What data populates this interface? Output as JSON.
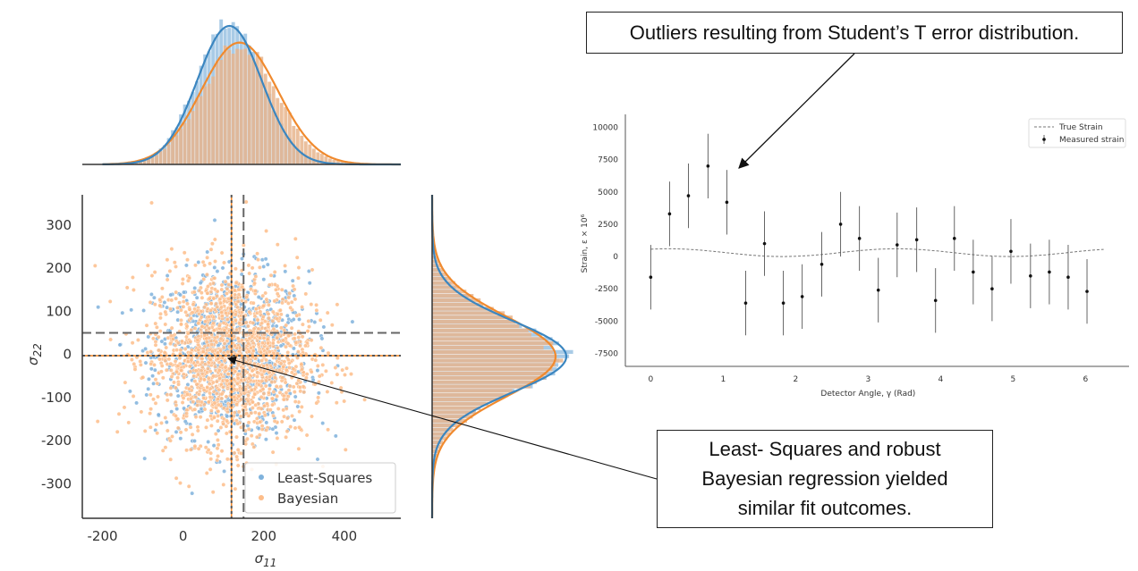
{
  "annotations": {
    "outliers": "Outliers resulting from Student’s T error distribution.",
    "comparison": "Least- Squares and robust\nBayesian regression yielded\nsimilar fit outcomes."
  },
  "colors": {
    "blue": "#3b86c0",
    "orange": "#f08a2e",
    "grid": "#d9d9d9",
    "axis": "#333333"
  },
  "chart_data": [
    {
      "type": "scatter",
      "xlabel": "σ11",
      "ylabel": "σ22",
      "xlim": [
        -250,
        540
      ],
      "ylim": [
        -380,
        370
      ],
      "xticks": [
        -200,
        0,
        200,
        400
      ],
      "yticks": [
        -300,
        -200,
        -100,
        0,
        100,
        200,
        300
      ],
      "series": [
        {
          "name": "Least-Squares",
          "color": "#7fb2dc",
          "center": [
            120,
            0
          ],
          "spread": [
            95,
            95
          ],
          "mean_lines": {
            "x": 150,
            "y": 50
          }
        },
        {
          "name": "Bayesian",
          "color": "#fdbd8a",
          "center": [
            120,
            -5
          ],
          "spread": [
            100,
            100
          ],
          "mean_lines": {
            "x": 120,
            "y": -3
          }
        }
      ],
      "marginals": {
        "top": {
          "blue_peak_x": 115,
          "orange_peak_x": 140
        },
        "right": {
          "blue_peak_y": -5,
          "orange_peak_y": -5
        }
      },
      "legend": {
        "placement": "bottom-right",
        "entries": [
          "Least-Squares",
          "Bayesian"
        ]
      }
    },
    {
      "type": "errorbar",
      "xlabel": "Detector Angle, γ (Rad)",
      "ylabel": "Strain, ε × 10⁶",
      "xlim": [
        -0.35,
        6.6
      ],
      "ylim": [
        -8500,
        11000
      ],
      "xticks": [
        0,
        1,
        2,
        3,
        4,
        5,
        6
      ],
      "yticks": [
        10000,
        7500,
        5000,
        2500,
        0,
        -2500,
        -5000,
        -7500
      ],
      "legend": {
        "placement": "top-right",
        "entries": [
          "True Strain",
          "Measured strain"
        ]
      },
      "true_strain": {
        "amplitude": 300,
        "offset": 300,
        "frequency": 2,
        "phase": 0.5
      },
      "measured": [
        {
          "x": 0.0,
          "y": -1600,
          "err": 2500
        },
        {
          "x": 0.26,
          "y": 3300,
          "err": 2500
        },
        {
          "x": 0.52,
          "y": 4700,
          "err": 2500
        },
        {
          "x": 0.79,
          "y": 7000,
          "err": 2500
        },
        {
          "x": 1.05,
          "y": 4200,
          "err": 2500
        },
        {
          "x": 1.31,
          "y": -3600,
          "err": 2500
        },
        {
          "x": 1.57,
          "y": 1000,
          "err": 2500
        },
        {
          "x": 1.83,
          "y": -3600,
          "err": 2500
        },
        {
          "x": 2.09,
          "y": -3100,
          "err": 2500
        },
        {
          "x": 2.36,
          "y": -600,
          "err": 2500
        },
        {
          "x": 2.62,
          "y": 2500,
          "err": 2500
        },
        {
          "x": 2.88,
          "y": 1400,
          "err": 2500
        },
        {
          "x": 3.14,
          "y": -2600,
          "err": 2500
        },
        {
          "x": 3.4,
          "y": 900,
          "err": 2500
        },
        {
          "x": 3.67,
          "y": 1300,
          "err": 2500
        },
        {
          "x": 3.93,
          "y": -3400,
          "err": 2500
        },
        {
          "x": 4.19,
          "y": 1400,
          "err": 2500
        },
        {
          "x": 4.45,
          "y": -1200,
          "err": 2500
        },
        {
          "x": 4.71,
          "y": -2500,
          "err": 2500
        },
        {
          "x": 4.97,
          "y": 400,
          "err": 2500
        },
        {
          "x": 5.24,
          "y": -1500,
          "err": 2500
        },
        {
          "x": 5.5,
          "y": -1200,
          "err": 2500
        },
        {
          "x": 5.76,
          "y": -1600,
          "err": 2500
        },
        {
          "x": 6.02,
          "y": -2700,
          "err": 2500
        }
      ]
    }
  ]
}
